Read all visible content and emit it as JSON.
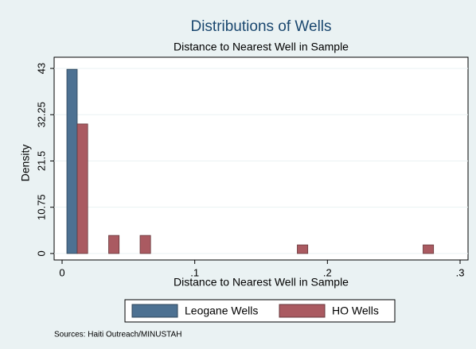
{
  "chart_data": {
    "type": "histogram",
    "title": "Distributions of Wells",
    "subtitle": "Distance to Nearest Well in Sample",
    "xlabel": "Distance to Nearest Well in Sample",
    "ylabel": "Density",
    "source": "Sources: Haiti Outreach/MINUSTAH",
    "xlim": [
      -0.006,
      0.306
    ],
    "xticks": [
      0,
      {
        "value": 0.1,
        "label": ".1"
      },
      {
        "value": 0.2,
        "label": ".2"
      },
      {
        "value": 0.3,
        "label": ".3"
      }
    ],
    "ylim": [
      -1.5,
      45.6
    ],
    "yticks": [
      0,
      10.75,
      21.5,
      32.25,
      43
    ],
    "grid": true,
    "legend": "bottom",
    "series": [
      {
        "name": "Leogane Wells",
        "color": "#4d7192",
        "bins": [
          0.0036,
          0.0114
        ],
        "values": [
          42.8
        ]
      },
      {
        "name": "HO Wells",
        "color": "#aa5a61",
        "bins": [
          0.0114,
          0.0193,
          0.0272,
          0.0351,
          0.043,
          0.0509,
          0.0588,
          0.0667,
          0.0746,
          0.0825,
          0.0904,
          0.0983,
          0.1062,
          0.1141,
          0.122,
          0.1299,
          0.1378,
          0.1457,
          0.1536,
          0.1615,
          0.1694,
          0.1773,
          0.1852,
          0.1931,
          0.201,
          0.2089,
          0.2168,
          0.2247,
          0.2326,
          0.2405,
          0.2484,
          0.2563,
          0.2642,
          0.2721,
          0.28
        ],
        "values": [
          30.1,
          0,
          0,
          4.2,
          0,
          0,
          4.2,
          0,
          0,
          0,
          0,
          0,
          0,
          0,
          0,
          0,
          0,
          0,
          0,
          0,
          0,
          2.0,
          0,
          0,
          0,
          0,
          0,
          0,
          0,
          0,
          0,
          0,
          0,
          2.0
        ]
      }
    ]
  }
}
